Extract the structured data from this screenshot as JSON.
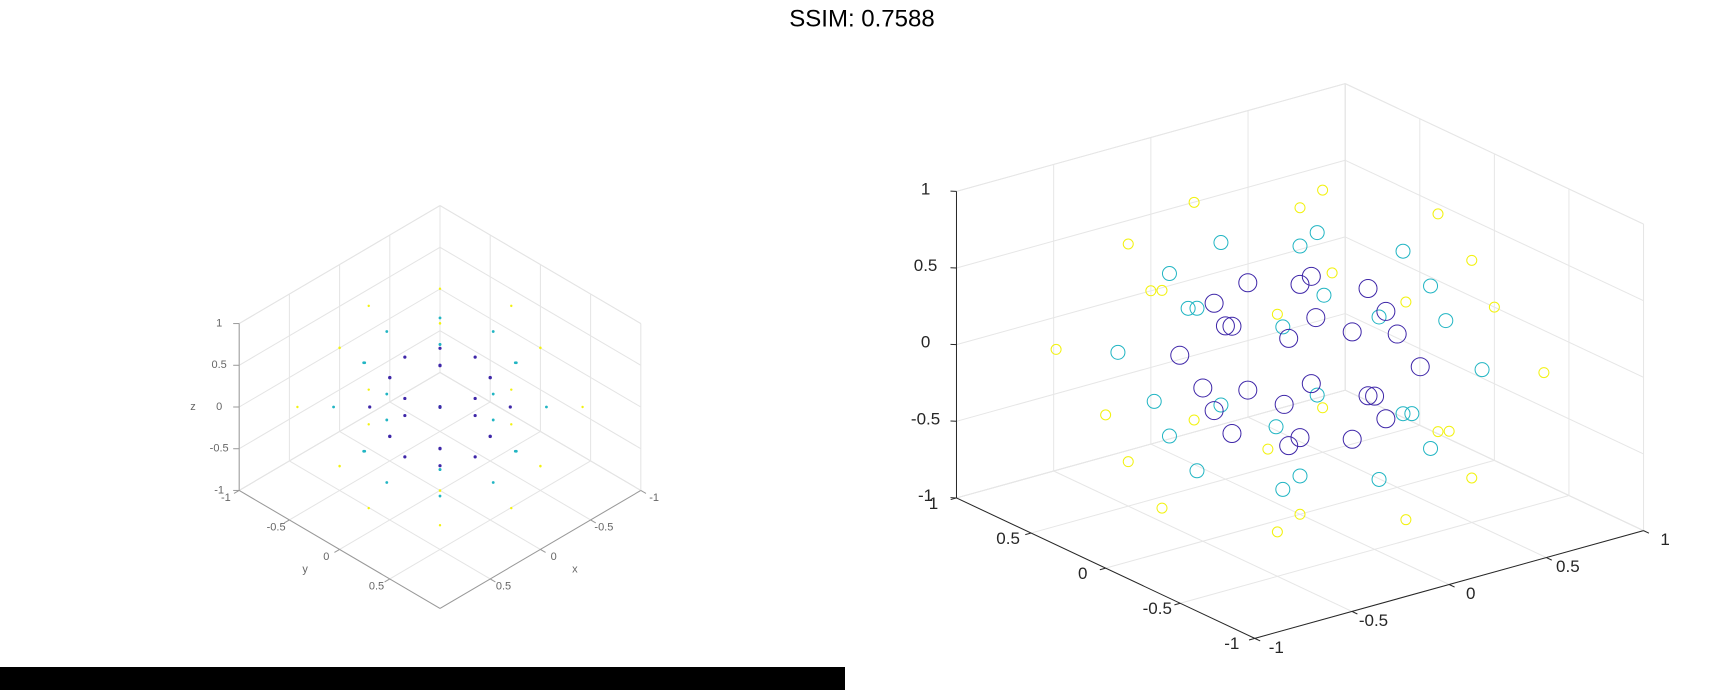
{
  "title": "SSIM: 0.7588",
  "chart_data": [
    {
      "type": "scatter3d",
      "xlabel": "x",
      "ylabel": "y",
      "zlabel": "z",
      "xlim": [
        -1,
        1
      ],
      "ylim": [
        -1,
        1
      ],
      "zlim": [
        -1,
        1
      ],
      "xticks": [
        -1,
        -0.5,
        0,
        0.5
      ],
      "yticks": [
        -1,
        -0.5,
        0,
        0.5
      ],
      "zticks": [
        -1,
        -0.5,
        0,
        0.5,
        1
      ],
      "grid": true,
      "marker": "dot",
      "series": [
        {
          "color": "#f2f20e",
          "marker_size": 1.2,
          "x": [
            1,
            0.71,
            0,
            -0.71,
            -1,
            -0.71,
            0,
            0.71,
            0.71,
            0.5,
            0,
            -0.5,
            -0.71,
            -0.5,
            0,
            0.5,
            0.71,
            0.5,
            0,
            -0.5,
            -0.71,
            -0.5,
            0,
            0.5,
            0,
            0
          ],
          "y": [
            0,
            0.71,
            1,
            0.71,
            0,
            -0.71,
            -1,
            -0.71,
            0,
            0.5,
            0.71,
            0.5,
            0,
            -0.5,
            -0.71,
            -0.5,
            0,
            0.5,
            0.71,
            0.5,
            0,
            -0.5,
            -0.71,
            -0.5,
            0,
            0
          ],
          "z": [
            0,
            0,
            0,
            0,
            0,
            0,
            0,
            0,
            0.71,
            0.71,
            0.71,
            0.71,
            0.71,
            0.71,
            0.71,
            0.71,
            -0.71,
            -0.71,
            -0.71,
            -0.71,
            -0.71,
            -0.71,
            -0.71,
            -0.71,
            1,
            -1
          ]
        },
        {
          "color": "#21b5c3",
          "marker_size": 1.4,
          "x": [
            0.75,
            0.53,
            0,
            -0.53,
            -0.75,
            -0.53,
            0,
            0.53,
            0.53,
            0.38,
            0,
            -0.38,
            -0.53,
            -0.38,
            0,
            0.38,
            0.53,
            0.38,
            0,
            -0.38,
            -0.53,
            -0.38,
            0,
            0.38,
            0,
            0
          ],
          "y": [
            0,
            0.53,
            0.75,
            0.53,
            0,
            -0.53,
            -0.75,
            -0.53,
            0,
            0.38,
            0.53,
            0.38,
            0,
            -0.38,
            -0.53,
            -0.38,
            0,
            0.38,
            0.53,
            0.38,
            0,
            -0.38,
            -0.53,
            -0.38,
            0,
            0
          ],
          "z": [
            0,
            0,
            0,
            0,
            0,
            0,
            0,
            0,
            0.53,
            0.53,
            0.53,
            0.53,
            0.53,
            0.53,
            0.53,
            0.53,
            -0.53,
            -0.53,
            -0.53,
            -0.53,
            -0.53,
            -0.53,
            -0.53,
            -0.53,
            0.75,
            -0.75
          ]
        },
        {
          "color": "#3e26a8",
          "marker_size": 1.6,
          "x": [
            0.5,
            0.35,
            0,
            -0.35,
            -0.5,
            -0.35,
            0,
            0.35,
            0.35,
            0.25,
            0,
            -0.25,
            -0.35,
            -0.25,
            0,
            0.25,
            0.35,
            0.25,
            0,
            -0.25,
            -0.35,
            -0.25,
            0,
            0.25,
            0,
            0
          ],
          "y": [
            0,
            0.35,
            0.5,
            0.35,
            0,
            -0.35,
            -0.5,
            -0.35,
            0,
            0.25,
            0.35,
            0.25,
            0,
            -0.25,
            -0.35,
            -0.25,
            0,
            0.25,
            0.35,
            0.25,
            0,
            -0.25,
            -0.35,
            -0.25,
            0,
            0
          ],
          "z": [
            0,
            0,
            0,
            0,
            0,
            0,
            0,
            0,
            0.35,
            0.35,
            0.35,
            0.35,
            0.35,
            0.35,
            0.35,
            0.35,
            -0.35,
            -0.35,
            -0.35,
            -0.35,
            -0.35,
            -0.35,
            -0.35,
            -0.35,
            0.5,
            -0.5
          ]
        }
      ]
    },
    {
      "type": "scatter3d",
      "xlim": [
        -1,
        1
      ],
      "ylim": [
        -1,
        1
      ],
      "zlim": [
        -1,
        1
      ],
      "xticks": [
        -1,
        -0.5,
        0,
        0.5,
        1
      ],
      "yticks": [
        -1,
        -0.5,
        0,
        0.5,
        1
      ],
      "zticks": [
        -1,
        -0.5,
        0,
        0.5,
        1
      ],
      "grid": true,
      "marker": "circle",
      "series": [
        {
          "color": "#f2f20e",
          "marker_size": 5,
          "x": [
            1,
            0.71,
            0,
            -0.71,
            -1,
            -0.71,
            0,
            0.71,
            0.71,
            0.5,
            0,
            -0.5,
            -0.71,
            -0.5,
            0,
            0.5,
            0.71,
            0.5,
            0,
            -0.5,
            -0.71,
            -0.5,
            0,
            0.5,
            0,
            0
          ],
          "y": [
            0,
            0.71,
            1,
            0.71,
            0,
            -0.71,
            -1,
            -0.71,
            0,
            0.5,
            0.71,
            0.5,
            0,
            -0.5,
            -0.71,
            -0.5,
            0,
            0.5,
            0.71,
            0.5,
            0,
            -0.5,
            -0.71,
            -0.5,
            0,
            0
          ],
          "z": [
            0,
            0,
            0,
            0,
            0,
            0,
            0,
            0,
            0.71,
            0.71,
            0.71,
            0.71,
            0.71,
            0.71,
            0.71,
            0.71,
            -0.71,
            -0.71,
            -0.71,
            -0.71,
            -0.71,
            -0.71,
            -0.71,
            -0.71,
            1,
            -1
          ]
        },
        {
          "color": "#21b5c3",
          "marker_size": 7,
          "x": [
            0.75,
            0.53,
            0,
            -0.53,
            -0.75,
            -0.53,
            0,
            0.53,
            0.53,
            0.38,
            0,
            -0.38,
            -0.53,
            -0.38,
            0,
            0.38,
            0.53,
            0.38,
            0,
            -0.38,
            -0.53,
            -0.38,
            0,
            0.38,
            0,
            0
          ],
          "y": [
            0,
            0.53,
            0.75,
            0.53,
            0,
            -0.53,
            -0.75,
            -0.53,
            0,
            0.38,
            0.53,
            0.38,
            0,
            -0.38,
            -0.53,
            -0.38,
            0,
            0.38,
            0.53,
            0.38,
            0,
            -0.38,
            -0.53,
            -0.38,
            0,
            0
          ],
          "z": [
            0,
            0,
            0,
            0,
            0,
            0,
            0,
            0,
            0.53,
            0.53,
            0.53,
            0.53,
            0.53,
            0.53,
            0.53,
            0.53,
            -0.53,
            -0.53,
            -0.53,
            -0.53,
            -0.53,
            -0.53,
            -0.53,
            -0.53,
            0.75,
            -0.75
          ]
        },
        {
          "color": "#3e26a8",
          "marker_size": 9,
          "x": [
            0.5,
            0.35,
            0,
            -0.35,
            -0.5,
            -0.35,
            0,
            0.35,
            0.35,
            0.25,
            0,
            -0.25,
            -0.35,
            -0.25,
            0,
            0.25,
            0.35,
            0.25,
            0,
            -0.25,
            -0.35,
            -0.25,
            0,
            0.25,
            0,
            0
          ],
          "y": [
            0,
            0.35,
            0.5,
            0.35,
            0,
            -0.35,
            -0.5,
            -0.35,
            0,
            0.25,
            0.35,
            0.25,
            0,
            -0.25,
            -0.35,
            -0.25,
            0,
            0.25,
            0.35,
            0.25,
            0,
            -0.25,
            -0.35,
            -0.25,
            0,
            0
          ],
          "z": [
            0,
            0,
            0,
            0,
            0,
            0,
            0,
            0,
            0.35,
            0.35,
            0.35,
            0.35,
            0.35,
            0.35,
            0.35,
            0.35,
            -0.35,
            -0.35,
            -0.35,
            -0.35,
            -0.35,
            -0.35,
            -0.35,
            -0.35,
            0.5,
            -0.5
          ]
        }
      ]
    }
  ]
}
